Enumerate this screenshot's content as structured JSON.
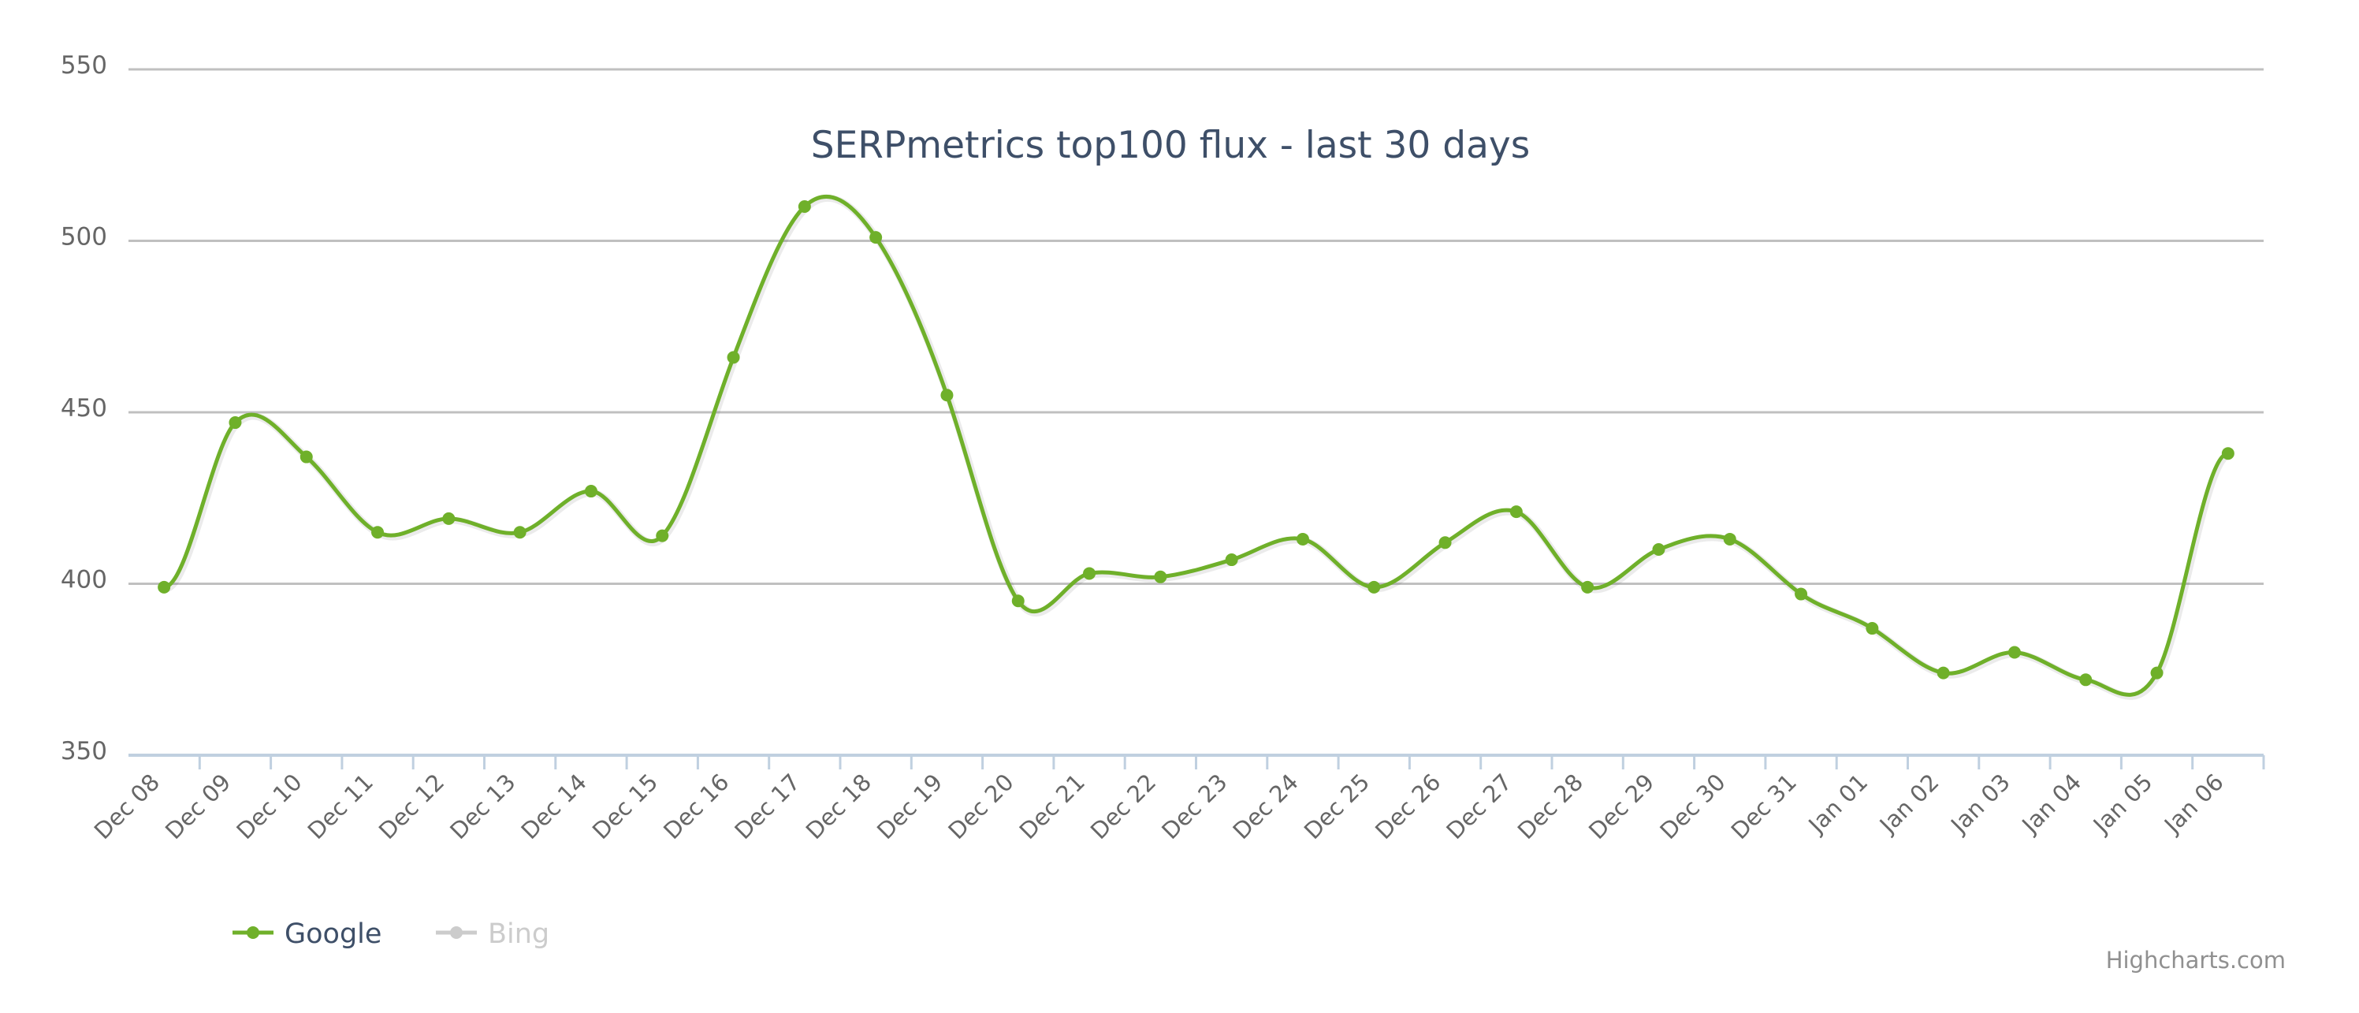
{
  "chart_data": {
    "type": "line",
    "title": "SERPmetrics top100 flux - last 30 days",
    "xlabel": "",
    "ylabel": "",
    "categories": [
      "Dec 08",
      "Dec 09",
      "Dec 10",
      "Dec 11",
      "Dec 12",
      "Dec 13",
      "Dec 14",
      "Dec 15",
      "Dec 16",
      "Dec 17",
      "Dec 18",
      "Dec 19",
      "Dec 20",
      "Dec 21",
      "Dec 22",
      "Dec 23",
      "Dec 24",
      "Dec 25",
      "Dec 26",
      "Dec 27",
      "Dec 28",
      "Dec 29",
      "Dec 30",
      "Dec 31",
      "Jan 01",
      "Jan 02",
      "Jan 03",
      "Jan 04",
      "Jan 05",
      "Jan 06"
    ],
    "series": [
      {
        "name": "Google",
        "color": "#6fb02a",
        "visible": true,
        "values": [
          399,
          447,
          437,
          415,
          419,
          415,
          427,
          414,
          466,
          510,
          501,
          455,
          395,
          403,
          402,
          407,
          413,
          399,
          412,
          421,
          399,
          410,
          413,
          397,
          387,
          374,
          380,
          372,
          374,
          438
        ]
      },
      {
        "name": "Bing",
        "color": "#cccccc",
        "visible": false,
        "values": []
      }
    ],
    "ylim": [
      350,
      550
    ],
    "yticks": [
      350,
      400,
      450,
      500,
      550
    ],
    "grid": true,
    "legend_position": "bottom-left",
    "line_style": "spline"
  },
  "credits": "Highcharts.com",
  "colors": {
    "title": "#3e4f68",
    "axis_label": "#666666",
    "gridline": "#c0c0c0",
    "axis_line": "#c0d0e0",
    "legend_active": "#3e4f68",
    "legend_hidden": "#cccccc",
    "credits": "#909090"
  }
}
